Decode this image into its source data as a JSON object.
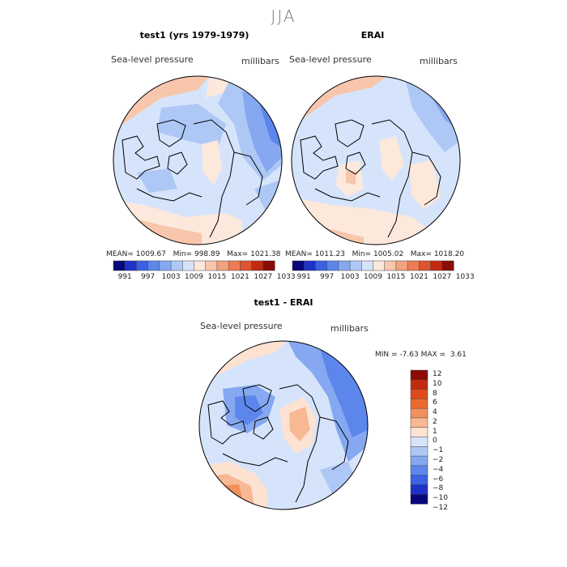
{
  "season": "JJA",
  "panels": {
    "test": {
      "title": "test1 (yrs 1979-1979)",
      "variable": "Sea-level pressure",
      "units": "millibars",
      "mean_label": "MEAN=",
      "mean": "1009.67",
      "min_label": "Min=",
      "min": "998.89",
      "max_label": "Max=",
      "max": "1021.38"
    },
    "reference": {
      "title": "ERAI",
      "variable": "Sea-level pressure",
      "units": "millibars",
      "mean_label": "MEAN=",
      "mean": "1011.23",
      "min_label": "Min=",
      "min": "1005.02",
      "max_label": "Max=",
      "max": "1018.20"
    },
    "difference": {
      "title": "test1 - ERAI",
      "variable": "Sea-level pressure",
      "units": "millibars",
      "min_label": "MIN =",
      "min": "-7.63",
      "max_label": "MAX =",
      "max": "3.61"
    }
  },
  "colorbar_top": {
    "colors": [
      "#08087a",
      "#1e32c8",
      "#3a62e2",
      "#5c86ec",
      "#85a8f1",
      "#aec8f6",
      "#d6e4fb",
      "#fde8dc",
      "#f8c6ac",
      "#f2a27e",
      "#ec7c52",
      "#de5430",
      "#c22a10",
      "#8a0c04"
    ],
    "ticks": [
      "991",
      "997",
      "1003",
      "1009",
      "1015",
      "1021",
      "1027",
      "1033"
    ]
  },
  "colorbar_diff": {
    "colors_top_to_bottom": [
      "#8a0c04",
      "#c22a10",
      "#de4a1a",
      "#ec6a30",
      "#f2905e",
      "#f8b894",
      "#fde2d2",
      "#d6e4fb",
      "#aec8f6",
      "#85a8f1",
      "#5c86ec",
      "#3a62e2",
      "#1e32c8",
      "#08087a"
    ],
    "ticks": [
      "12",
      "10",
      "8",
      "6",
      "4",
      "2",
      "1",
      "0",
      "−1",
      "−2",
      "−4",
      "−6",
      "−8",
      "−10",
      "−12"
    ]
  },
  "chart_data": [
    {
      "type": "heatmap",
      "title": "test1 (yrs 1979-1979)",
      "variable": "Sea-level pressure",
      "units": "millibars",
      "projection": "north polar stereographic",
      "stats": {
        "mean": 1009.67,
        "min": 998.89,
        "max": 1021.38
      },
      "colorbar_levels": [
        991,
        997,
        1003,
        1009,
        1015,
        1021,
        1027,
        1033
      ]
    },
    {
      "type": "heatmap",
      "title": "ERAI",
      "variable": "Sea-level pressure",
      "units": "millibars",
      "projection": "north polar stereographic",
      "stats": {
        "mean": 1011.23,
        "min": 1005.02,
        "max": 1018.2
      },
      "colorbar_levels": [
        991,
        997,
        1003,
        1009,
        1015,
        1021,
        1027,
        1033
      ]
    },
    {
      "type": "heatmap",
      "title": "test1 - ERAI",
      "variable": "Sea-level pressure",
      "units": "millibars",
      "projection": "north polar stereographic",
      "stats": {
        "min": -7.63,
        "max": 3.61
      },
      "colorbar_levels": [
        -12,
        -10,
        -8,
        -6,
        -4,
        -2,
        -1,
        0,
        1,
        2,
        4,
        6,
        8,
        10,
        12
      ]
    }
  ]
}
